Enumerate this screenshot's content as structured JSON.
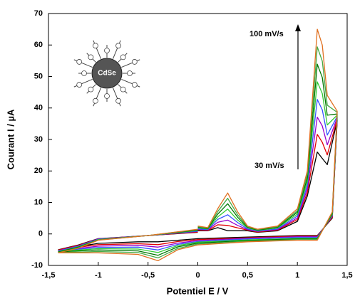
{
  "chart_data": {
    "type": "line",
    "xlabel": "Potentiel E / V",
    "ylabel": "Courant I / µA",
    "annotations": [
      "100 mV/s",
      "30 mV/s"
    ],
    "inset_label": "CdSe",
    "x": [
      0,
      0.1,
      0.2,
      0.3,
      0.4,
      0.5,
      0.6,
      0.8,
      1.0,
      1.1,
      1.2,
      1.25,
      1.3,
      1.4,
      1.35,
      1.2,
      1.0,
      0.5,
      0,
      -0.2,
      -0.4,
      -0.6,
      -1.0,
      -1.4,
      -1.2,
      -1.0,
      -0.5,
      0
    ],
    "series": [
      {
        "color": "#000000",
        "values": [
          1,
          1,
          2,
          1,
          1,
          1,
          0.5,
          1,
          4,
          12,
          26,
          24,
          22,
          36,
          5,
          -0.5,
          -0.5,
          -1,
          -1.5,
          -2,
          -2.5,
          -2.5,
          -3,
          -5,
          -3.5,
          -1.5,
          -0.5,
          0.5
        ]
      },
      {
        "color": "#e00000",
        "values": [
          1.2,
          1.1,
          2.9,
          2.7,
          1.9,
          1.2,
          0.6,
          1.2,
          4.6,
          13.1,
          31.6,
          29.1,
          25.1,
          36.4,
          5.3,
          -0.7,
          -0.7,
          -1.2,
          -1.8,
          -2.4,
          -3.4,
          -3.1,
          -3.4,
          -5.1,
          -3.6,
          -1.6,
          -0.5,
          0.6
        ]
      },
      {
        "color": "#9900cc",
        "values": [
          1.4,
          1.3,
          3.7,
          4.4,
          2.7,
          1.4,
          0.8,
          1.4,
          5.1,
          14.3,
          37.1,
          34.3,
          28.3,
          36.9,
          5.6,
          -0.9,
          -0.9,
          -1.4,
          -2.1,
          -2.9,
          -4.2,
          -3.6,
          -3.9,
          -5.3,
          -3.8,
          -1.6,
          -0.5,
          0.8
        ]
      },
      {
        "color": "#3355ff",
        "values": [
          1.6,
          1.4,
          4.6,
          6.1,
          3.6,
          1.6,
          0.9,
          1.6,
          5.7,
          15.4,
          42.7,
          39.4,
          31.4,
          37.3,
          5.9,
          -1.1,
          -1.1,
          -1.6,
          -2.4,
          -3.3,
          -5.1,
          -4.2,
          -4.3,
          -5.4,
          -3.9,
          -1.7,
          -0.5,
          0.9
        ]
      },
      {
        "color": "#33cc33",
        "values": [
          1.9,
          1.6,
          5.4,
          7.9,
          4.4,
          1.9,
          1.1,
          1.9,
          6.3,
          16.6,
          48.3,
          44.6,
          34.6,
          37.7,
          6.1,
          -1.4,
          -1.4,
          -1.9,
          -2.6,
          -3.7,
          -5.9,
          -4.8,
          -4.7,
          -5.6,
          -4.1,
          -1.8,
          -0.5,
          1.1
        ]
      },
      {
        "color": "#007700",
        "values": [
          2.1,
          1.7,
          6.3,
          9.6,
          5.3,
          2.1,
          1.2,
          2.1,
          6.9,
          17.7,
          53.9,
          49.7,
          37.7,
          38.1,
          6.4,
          -1.6,
          -1.6,
          -2.1,
          -2.9,
          -4.1,
          -6.8,
          -5.4,
          -5.1,
          -5.7,
          -4.2,
          -1.9,
          -0.5,
          1.2
        ]
      },
      {
        "color": "#44aa44",
        "values": [
          2.3,
          1.9,
          7.1,
          11.3,
          6.1,
          2.3,
          1.4,
          2.3,
          7.4,
          18.9,
          59.4,
          54.9,
          40.9,
          38.6,
          6.7,
          -1.8,
          -1.8,
          -2.3,
          -3.2,
          -4.6,
          -7.6,
          -5.9,
          -5.6,
          -5.9,
          -4.4,
          -1.9,
          -0.5,
          1.4
        ]
      },
      {
        "color": "#e07020",
        "values": [
          2.5,
          2,
          8,
          13,
          7,
          2.5,
          1.5,
          2.5,
          8,
          20,
          65,
          60,
          44,
          39,
          7,
          -2,
          -2,
          -2.5,
          -3.5,
          -5,
          -8.5,
          -6.5,
          -6,
          -6,
          -4.5,
          -2,
          -0.5,
          1.5
        ]
      }
    ],
    "xlim": [
      -1.5,
      1.5
    ],
    "xticks": [
      {
        "value": -1.5,
        "label": "-1,5"
      },
      -1,
      {
        "value": -0.5,
        "label": "-0,5"
      },
      0,
      {
        "value": 0.5,
        "label": "0,5"
      },
      1,
      {
        "value": 1.5,
        "label": "1,5"
      }
    ],
    "ylim": [
      -10,
      70
    ],
    "yticks": [
      -10,
      0,
      10,
      20,
      30,
      40,
      50,
      60,
      70
    ],
    "grid": false
  }
}
